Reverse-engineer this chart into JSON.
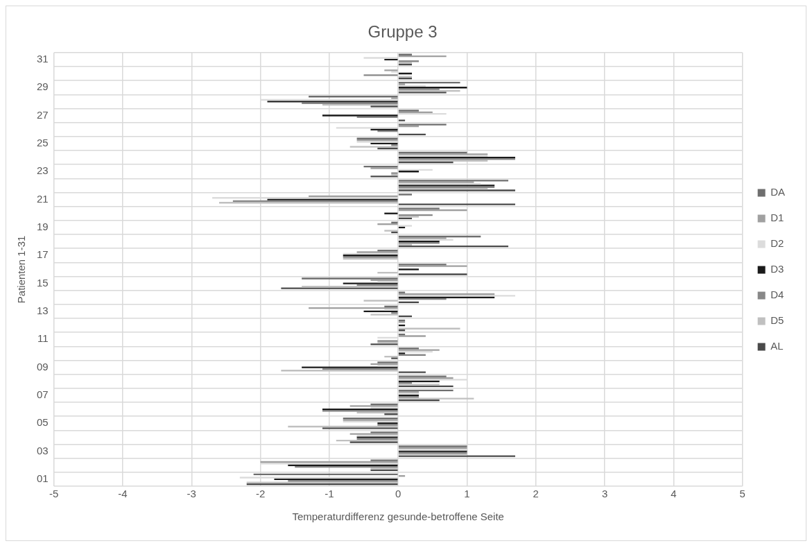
{
  "chart_data": {
    "type": "bar",
    "orientation": "horizontal",
    "title": "Gruppe 3",
    "xlabel": "Temperaturdifferenz gesunde-betroffene Seite",
    "ylabel": "Patienten 1-31",
    "categories": [
      "31",
      null,
      "29",
      null,
      "27",
      null,
      "25",
      null,
      "23",
      null,
      "21",
      null,
      "19",
      null,
      "17",
      null,
      "15",
      null,
      "13",
      null,
      "11",
      null,
      "09",
      null,
      "07",
      null,
      "05",
      null,
      "03",
      null,
      "01"
    ],
    "xlim": [
      -5,
      5
    ],
    "xticks": [
      -5,
      -4,
      -3,
      -2,
      -1,
      0,
      1,
      2,
      3,
      4,
      5
    ],
    "grid": true,
    "legend": "right",
    "series": [
      {
        "name": "DA",
        "color": "#6e6e6e",
        "values": [
          0.2,
          0,
          0.9,
          -1.3,
          0.3,
          0.7,
          -0.6,
          1.0,
          -0.5,
          1.6,
          0.2,
          0.6,
          -0.1,
          1.2,
          -0.3,
          0.7,
          -1.4,
          0.1,
          -0.2,
          0.1,
          0.1,
          0.3,
          -0.3,
          0.7,
          0.8,
          -0.4,
          -0.8,
          -0.4,
          1.0,
          -0.4,
          -2.1
        ]
      },
      {
        "name": "D1",
        "color": "#a0a0a0",
        "values": [
          0.7,
          -0.2,
          0.1,
          -0.1,
          0.5,
          0.3,
          -0.6,
          1.3,
          -0.4,
          1.1,
          -1.3,
          1.0,
          -0.3,
          0.7,
          -0.6,
          1.0,
          -0.4,
          1.4,
          -1.3,
          0.1,
          0.4,
          0.6,
          -0.4,
          0.8,
          0.3,
          -0.7,
          -0.8,
          -0.7,
          1.0,
          -2.0,
          0.1
        ]
      },
      {
        "name": "D2",
        "color": "#dcdcdc",
        "values": [
          -0.5,
          -0.1,
          0.4,
          -2.0,
          0.7,
          -0.9,
          -0.6,
          1.3,
          0.5,
          1.2,
          -2.7,
          0,
          0.2,
          0.8,
          -0.8,
          0,
          -0.3,
          1.7,
          -0.2,
          0,
          -0.3,
          0.5,
          -0.3,
          1.0,
          0.3,
          -0.4,
          -0.8,
          -0.6,
          1.0,
          -2.0,
          -2.3
        ]
      },
      {
        "name": "D3",
        "color": "#1a1a1a",
        "values": [
          -0.2,
          0.2,
          1.0,
          -1.9,
          -1.1,
          -0.4,
          -0.4,
          1.7,
          0.3,
          1.4,
          -1.9,
          -0.2,
          0.1,
          0.6,
          -0.8,
          0.3,
          -0.8,
          1.4,
          -0.5,
          0.1,
          0,
          0.1,
          -1.4,
          0.6,
          0.3,
          -1.1,
          -0.3,
          -0.6,
          1.0,
          -1.6,
          -1.8
        ]
      },
      {
        "name": "D4",
        "color": "#888888",
        "values": [
          0.3,
          -0.5,
          0.6,
          -1.4,
          -0.6,
          -0.3,
          -0.1,
          1.7,
          -0.1,
          1.4,
          -2.4,
          0.5,
          0,
          0.6,
          -0.8,
          0,
          -0.6,
          0.7,
          -0.1,
          0,
          -0.3,
          0.4,
          -1.1,
          0.2,
          0.3,
          -1.1,
          -0.3,
          -0.6,
          1.0,
          -1.5,
          -1.6
        ]
      },
      {
        "name": "D5",
        "color": "#c0c0c0",
        "values": [
          0.2,
          0.2,
          0.9,
          -1.1,
          0,
          0,
          -0.7,
          1.3,
          -0.1,
          1.3,
          -2.6,
          0.3,
          -0.2,
          0.2,
          -0.8,
          -0.3,
          -1.4,
          -0.5,
          -0.4,
          0.9,
          -0.3,
          -0.2,
          -1.7,
          0.6,
          1.1,
          -0.6,
          -1.6,
          -0.9,
          1.0,
          -0.4,
          -2.2
        ]
      },
      {
        "name": "AL",
        "color": "#4a4a4a",
        "values": [
          0.2,
          0.2,
          0.7,
          -0.4,
          0.1,
          0.4,
          -0.3,
          0.8,
          -0.4,
          1.7,
          1.7,
          0.2,
          -0.1,
          1.6,
          0,
          1.0,
          -1.7,
          0.3,
          0.2,
          0.1,
          -0.4,
          -0.1,
          0.4,
          0.8,
          0.6,
          -0.2,
          -1.1,
          -0.7,
          1.7,
          -0.4,
          -2.2
        ]
      }
    ]
  }
}
